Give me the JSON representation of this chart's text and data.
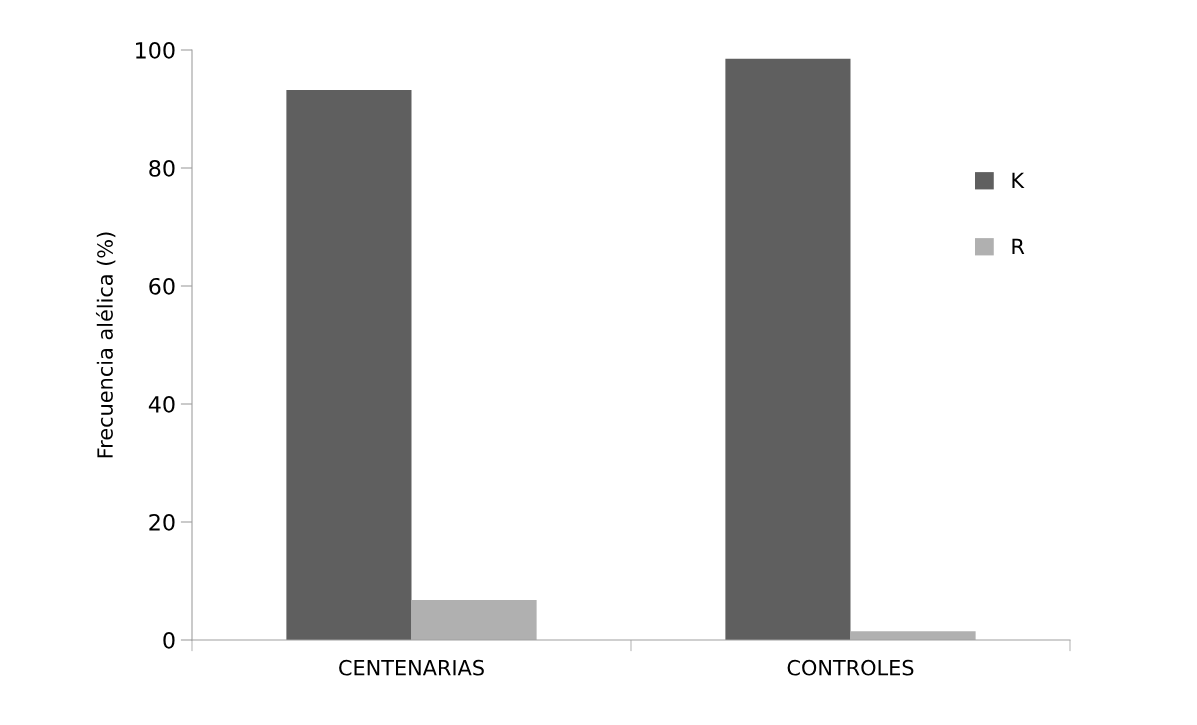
{
  "chart_data": {
    "type": "bar",
    "ylabel": "Frecuencia alélica (%)",
    "categories": [
      "CENTENARIAS",
      "CONTROLES"
    ],
    "series": [
      {
        "name": "K",
        "color": "#5f5f5f",
        "values": [
          93.2,
          98.5
        ]
      },
      {
        "name": "R",
        "color": "#b0b0b0",
        "values": [
          6.8,
          1.5
        ]
      }
    ],
    "ylim": [
      0,
      100
    ],
    "yticks": [
      0,
      20,
      40,
      60,
      80,
      100
    ],
    "grid": false,
    "legend": "right"
  }
}
